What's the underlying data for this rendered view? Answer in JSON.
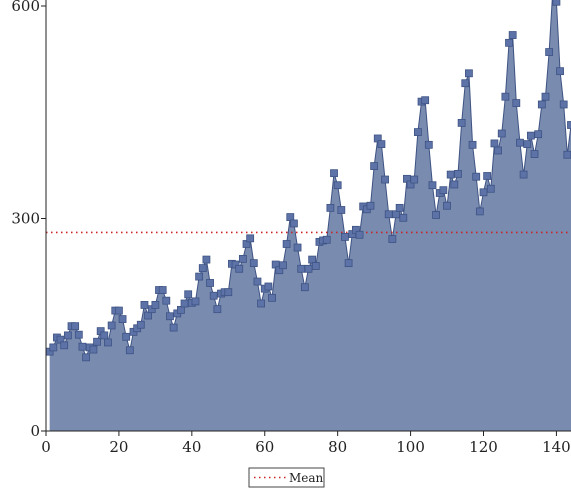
{
  "chart_data": {
    "type": "area",
    "title": "",
    "xlabel": "",
    "ylabel": "",
    "xlim": [
      0,
      144
    ],
    "ylim": [
      0,
      600
    ],
    "x_ticks": [
      0,
      20,
      40,
      60,
      80,
      100,
      120,
      140
    ],
    "y_ticks": [
      0,
      300,
      600
    ],
    "x_tick_labels": [
      "0",
      "20",
      "40",
      "60",
      "80",
      "100",
      "120",
      "140"
    ],
    "y_tick_labels": [
      "0",
      "300",
      "600"
    ],
    "grid": false,
    "legend_placement": "bottom-center",
    "series": [
      {
        "type": "area",
        "marker": "square",
        "x": [
          1,
          2,
          3,
          4,
          5,
          6,
          7,
          8,
          9,
          10,
          11,
          12,
          13,
          14,
          15,
          16,
          17,
          18,
          19,
          20,
          21,
          22,
          23,
          24,
          25,
          26,
          27,
          28,
          29,
          30,
          31,
          32,
          33,
          34,
          35,
          36,
          37,
          38,
          39,
          40,
          41,
          42,
          43,
          44,
          45,
          46,
          47,
          48,
          49,
          50,
          51,
          52,
          53,
          54,
          55,
          56,
          57,
          58,
          59,
          60,
          61,
          62,
          63,
          64,
          65,
          66,
          67,
          68,
          69,
          70,
          71,
          72,
          73,
          74,
          75,
          76,
          77,
          78,
          79,
          80,
          81,
          82,
          83,
          84,
          85,
          86,
          87,
          88,
          89,
          90,
          91,
          92,
          93,
          94,
          95,
          96,
          97,
          98,
          99,
          100,
          101,
          102,
          103,
          104,
          105,
          106,
          107,
          108,
          109,
          110,
          111,
          112,
          113,
          114,
          115,
          116,
          117,
          118,
          119,
          120,
          121,
          122,
          123,
          124,
          125,
          126,
          127,
          128,
          129,
          130,
          131,
          132,
          133,
          134,
          135,
          136,
          137,
          138,
          139,
          140,
          141,
          142,
          143,
          144
        ],
        "values": [
          112,
          118,
          132,
          129,
          121,
          135,
          148,
          148,
          136,
          119,
          104,
          118,
          115,
          126,
          141,
          135,
          125,
          149,
          170,
          170,
          158,
          133,
          114,
          140,
          145,
          150,
          178,
          163,
          172,
          178,
          199,
          199,
          184,
          162,
          146,
          166,
          171,
          180,
          193,
          181,
          183,
          218,
          230,
          242,
          209,
          191,
          172,
          194,
          196,
          196,
          236,
          235,
          229,
          243,
          264,
          272,
          237,
          211,
          180,
          201,
          204,
          188,
          235,
          227,
          234,
          264,
          302,
          293,
          259,
          229,
          203,
          229,
          242,
          233,
          267,
          269,
          270,
          315,
          364,
          347,
          312,
          274,
          237,
          278,
          284,
          277,
          317,
          313,
          318,
          374,
          413,
          405,
          355,
          306,
          271,
          306,
          315,
          301,
          356,
          348,
          355,
          422,
          465,
          467,
          404,
          347,
          305,
          336,
          340,
          318,
          362,
          348,
          363,
          435,
          491,
          505,
          404,
          359,
          310,
          337,
          360,
          342,
          406,
          396,
          420,
          472,
          548,
          559,
          463,
          407,
          362,
          405,
          417,
          391,
          419,
          461,
          472,
          535,
          622,
          606,
          508,
          461,
          390,
          432
        ]
      }
    ],
    "reference_lines": [
      {
        "label": "Mean",
        "value": 280.3,
        "style": "dotted",
        "color": "#cc2222"
      }
    ],
    "colors": {
      "area_fill": "#7a8bb0",
      "line": "#3e5383",
      "marker": "#5d73a8",
      "marker_edge": "#3e5383",
      "axis": "#222222"
    }
  }
}
